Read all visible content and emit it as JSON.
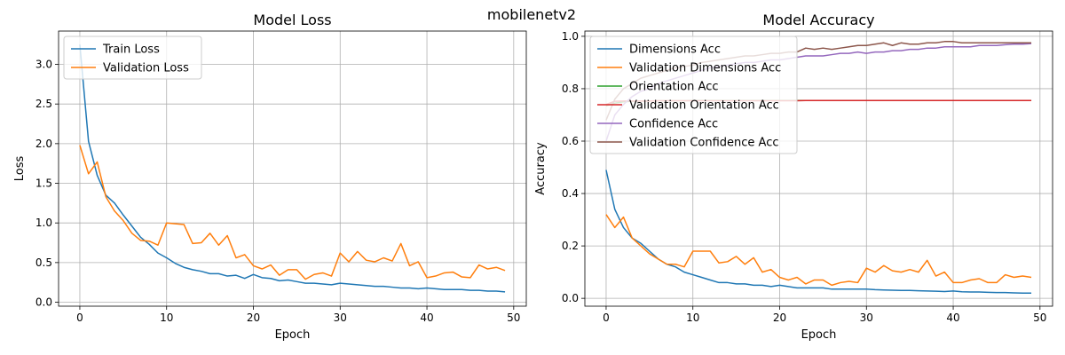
{
  "suptitle": "mobilenetv2",
  "chart_data": [
    {
      "type": "line",
      "title": "Model Loss",
      "xlabel": "Epoch",
      "ylabel": "Loss",
      "xlim": [
        -2.45,
        51.45
      ],
      "ylim": [
        -0.05,
        3.42
      ],
      "xticks": [
        0,
        10,
        20,
        30,
        40,
        50
      ],
      "yticks": [
        0.0,
        0.5,
        1.0,
        1.5,
        2.0,
        2.5,
        3.0
      ],
      "grid": true,
      "legend": "top-left",
      "series": [
        {
          "name": "Train Loss",
          "color": "#1f77b4",
          "values": [
            3.25,
            2.03,
            1.6,
            1.35,
            1.25,
            1.1,
            0.96,
            0.82,
            0.73,
            0.62,
            0.56,
            0.49,
            0.44,
            0.41,
            0.39,
            0.36,
            0.36,
            0.33,
            0.34,
            0.3,
            0.35,
            0.31,
            0.3,
            0.27,
            0.28,
            0.26,
            0.24,
            0.24,
            0.23,
            0.22,
            0.24,
            0.23,
            0.22,
            0.21,
            0.2,
            0.2,
            0.19,
            0.18,
            0.18,
            0.17,
            0.18,
            0.17,
            0.16,
            0.16,
            0.16,
            0.15,
            0.15,
            0.14,
            0.14,
            0.13
          ]
        },
        {
          "name": "Validation Loss",
          "color": "#ff7f0e",
          "values": [
            1.98,
            1.62,
            1.77,
            1.33,
            1.15,
            1.03,
            0.87,
            0.78,
            0.77,
            0.72,
            1.0,
            0.99,
            0.98,
            0.74,
            0.75,
            0.87,
            0.72,
            0.84,
            0.56,
            0.6,
            0.46,
            0.42,
            0.47,
            0.34,
            0.41,
            0.41,
            0.29,
            0.35,
            0.37,
            0.33,
            0.62,
            0.51,
            0.64,
            0.53,
            0.51,
            0.56,
            0.52,
            0.74,
            0.46,
            0.51,
            0.31,
            0.33,
            0.37,
            0.38,
            0.32,
            0.31,
            0.47,
            0.42,
            0.44,
            0.4
          ]
        }
      ]
    },
    {
      "type": "line",
      "title": "Model Accuracy",
      "xlabel": "Epoch",
      "ylabel": "Accuracy",
      "xlim": [
        -2.45,
        51.45
      ],
      "ylim": [
        -0.03,
        1.02
      ],
      "xticks": [
        0,
        10,
        20,
        30,
        40,
        50
      ],
      "yticks": [
        0.0,
        0.2,
        0.4,
        0.6,
        0.8,
        1.0
      ],
      "grid": true,
      "legend": "top-left",
      "series": [
        {
          "name": "Dimensions Acc",
          "color": "#1f77b4",
          "values": [
            0.49,
            0.34,
            0.27,
            0.23,
            0.21,
            0.18,
            0.15,
            0.13,
            0.12,
            0.1,
            0.09,
            0.08,
            0.07,
            0.06,
            0.06,
            0.055,
            0.055,
            0.05,
            0.05,
            0.045,
            0.05,
            0.045,
            0.04,
            0.04,
            0.04,
            0.04,
            0.035,
            0.035,
            0.035,
            0.035,
            0.035,
            0.033,
            0.032,
            0.031,
            0.03,
            0.03,
            0.029,
            0.028,
            0.027,
            0.026,
            0.028,
            0.025,
            0.024,
            0.024,
            0.023,
            0.022,
            0.022,
            0.021,
            0.02,
            0.02
          ]
        },
        {
          "name": "Validation Dimensions Acc",
          "color": "#ff7f0e",
          "values": [
            0.32,
            0.27,
            0.31,
            0.23,
            0.2,
            0.17,
            0.15,
            0.13,
            0.13,
            0.12,
            0.18,
            0.18,
            0.18,
            0.135,
            0.14,
            0.16,
            0.13,
            0.155,
            0.1,
            0.11,
            0.08,
            0.07,
            0.08,
            0.055,
            0.07,
            0.07,
            0.05,
            0.06,
            0.065,
            0.06,
            0.115,
            0.1,
            0.125,
            0.105,
            0.1,
            0.11,
            0.1,
            0.145,
            0.085,
            0.1,
            0.06,
            0.06,
            0.07,
            0.075,
            0.06,
            0.06,
            0.09,
            0.08,
            0.085,
            0.08
          ]
        },
        {
          "name": "Orientation Acc",
          "color": "#2ca02c",
          "values": [
            0.735,
            0.745,
            0.75,
            0.752,
            0.753,
            0.753,
            0.754,
            0.754,
            0.754,
            0.754,
            0.755,
            0.755,
            0.755,
            0.755,
            0.755,
            0.755,
            0.755,
            0.755,
            0.755,
            0.755,
            0.755,
            0.755,
            0.755,
            0.755,
            0.755,
            0.755,
            0.755,
            0.755,
            0.755,
            0.755,
            0.755,
            0.755,
            0.755,
            0.755,
            0.755,
            0.755,
            0.755,
            0.755,
            0.755,
            0.755,
            0.755,
            0.755,
            0.755,
            0.755,
            0.755,
            0.755,
            0.755,
            0.755,
            0.755,
            0.755
          ]
        },
        {
          "name": "Validation Orientation Acc",
          "color": "#d62728",
          "values": [
            0.74,
            0.752,
            0.753,
            0.753,
            0.753,
            0.753,
            0.754,
            0.754,
            0.754,
            0.754,
            0.754,
            0.754,
            0.754,
            0.754,
            0.754,
            0.754,
            0.754,
            0.754,
            0.754,
            0.754,
            0.754,
            0.754,
            0.754,
            0.755,
            0.755,
            0.755,
            0.755,
            0.755,
            0.755,
            0.755,
            0.755,
            0.755,
            0.755,
            0.755,
            0.755,
            0.755,
            0.755,
            0.755,
            0.755,
            0.755,
            0.755,
            0.755,
            0.755,
            0.755,
            0.755,
            0.755,
            0.755,
            0.755,
            0.755,
            0.755
          ]
        },
        {
          "name": "Confidence Acc",
          "color": "#9467bd",
          "values": [
            0.6,
            0.7,
            0.74,
            0.77,
            0.79,
            0.8,
            0.82,
            0.83,
            0.84,
            0.85,
            0.86,
            0.87,
            0.88,
            0.885,
            0.89,
            0.895,
            0.9,
            0.9,
            0.905,
            0.91,
            0.91,
            0.915,
            0.92,
            0.925,
            0.925,
            0.925,
            0.93,
            0.935,
            0.935,
            0.94,
            0.935,
            0.94,
            0.94,
            0.945,
            0.945,
            0.95,
            0.95,
            0.955,
            0.955,
            0.96,
            0.96,
            0.96,
            0.96,
            0.965,
            0.965,
            0.965,
            0.968,
            0.97,
            0.97,
            0.972
          ]
        },
        {
          "name": "Validation Confidence Acc",
          "color": "#8c564b",
          "values": [
            0.68,
            0.76,
            0.8,
            0.82,
            0.84,
            0.85,
            0.86,
            0.87,
            0.88,
            0.885,
            0.89,
            0.9,
            0.905,
            0.91,
            0.915,
            0.92,
            0.925,
            0.925,
            0.93,
            0.935,
            0.935,
            0.94,
            0.94,
            0.955,
            0.95,
            0.955,
            0.95,
            0.955,
            0.96,
            0.965,
            0.965,
            0.97,
            0.975,
            0.965,
            0.975,
            0.97,
            0.97,
            0.975,
            0.975,
            0.98,
            0.98,
            0.975,
            0.975,
            0.975,
            0.975,
            0.975,
            0.975,
            0.975,
            0.975,
            0.975
          ]
        }
      ]
    }
  ]
}
